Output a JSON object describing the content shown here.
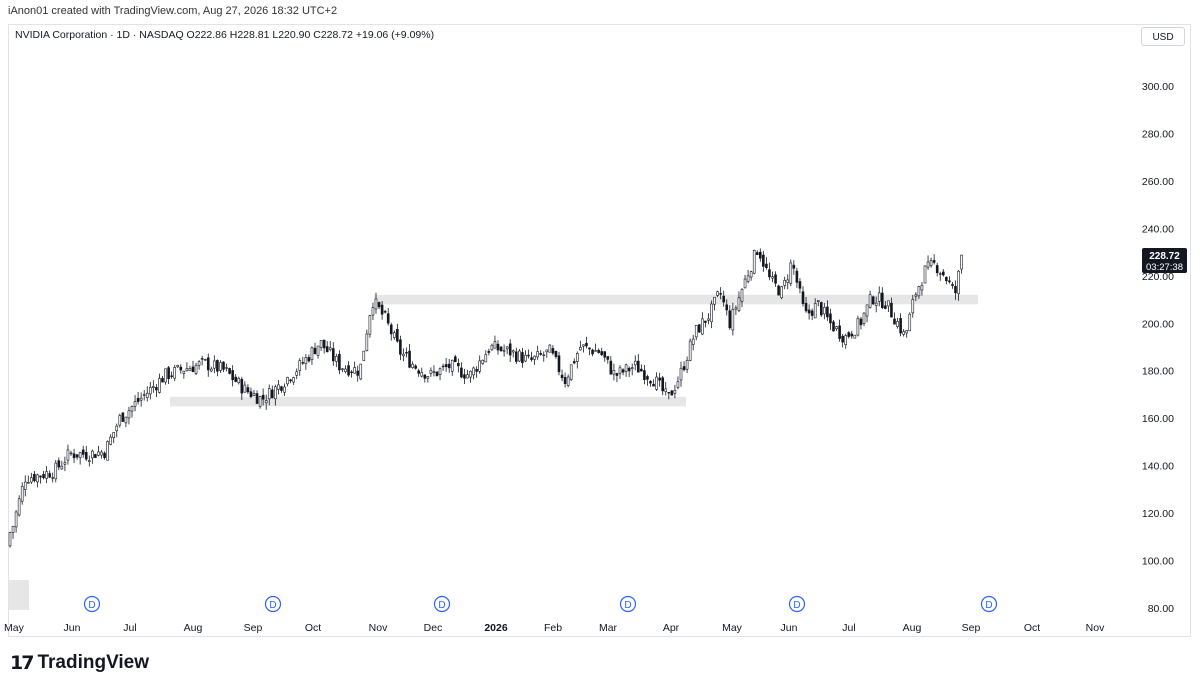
{
  "credit": "iAnon01 created with TradingView.com, Aug 27, 2026 18:32 UTC+2",
  "legend": "NVIDIA Corporation · 1D · NASDAQ  O222.86  H228.81  L220.90  C228.72  +19.06 (+9.09%)",
  "currency": "USD",
  "logo_text": "TradingView",
  "logo_icon": "tradingview-logo-icon",
  "chart_data": {
    "type": "candlestick",
    "symbol": "NVIDIA Corporation",
    "interval": "1D",
    "exchange": "NASDAQ",
    "ohlc_last": {
      "open": 222.86,
      "high": 228.81,
      "low": 220.9,
      "close": 228.72,
      "change": 19.06,
      "change_pct": 9.09
    },
    "y_ticks": [
      "300.00",
      "280.00",
      "260.00",
      "240.00",
      "220.00",
      "200.00",
      "180.00",
      "160.00",
      "140.00",
      "120.00",
      "100.00",
      "80.00"
    ],
    "y_tick_values": [
      300,
      280,
      260,
      240,
      220,
      200,
      180,
      160,
      140,
      120,
      100,
      80
    ],
    "ylim": [
      77,
      318
    ],
    "x_ticks": [
      "May",
      "Jun",
      "Jul",
      "Aug",
      "Sep",
      "Oct",
      "Nov",
      "Dec",
      "2026",
      "Feb",
      "Mar",
      "Apr",
      "May",
      "Jun",
      "Jul",
      "Aug",
      "Sep",
      "Oct",
      "Nov"
    ],
    "last_price_label": "228.72",
    "countdown_label": "03:27:38",
    "dividend_marker_label": "D",
    "dividend_markers": [
      "Jun",
      "Sep",
      "Dec",
      "Mar",
      "Jun",
      "Sep"
    ],
    "support_zones": [
      {
        "low": 165,
        "high": 169,
        "start": "Aug",
        "end": "Apr"
      },
      {
        "low": 208,
        "high": 212,
        "start": "Nov",
        "end": "Sep"
      }
    ],
    "price_path": [
      [
        0,
        106
      ],
      [
        12,
        113
      ],
      [
        25,
        135
      ],
      [
        40,
        136
      ],
      [
        55,
        138
      ],
      [
        70,
        145
      ],
      [
        90,
        145
      ],
      [
        105,
        146
      ],
      [
        120,
        160
      ],
      [
        140,
        168
      ],
      [
        165,
        178
      ],
      [
        185,
        181
      ],
      [
        205,
        183
      ],
      [
        225,
        180
      ],
      [
        245,
        172
      ],
      [
        262,
        168
      ],
      [
        280,
        174
      ],
      [
        300,
        182
      ],
      [
        320,
        192
      ],
      [
        340,
        182
      ],
      [
        360,
        180
      ],
      [
        372,
        210
      ],
      [
        385,
        202
      ],
      [
        400,
        188
      ],
      [
        415,
        182
      ],
      [
        430,
        178
      ],
      [
        450,
        182
      ],
      [
        470,
        178
      ],
      [
        490,
        190
      ],
      [
        510,
        188
      ],
      [
        530,
        184
      ],
      [
        550,
        188
      ],
      [
        565,
        176
      ],
      [
        580,
        190
      ],
      [
        600,
        188
      ],
      [
        615,
        178
      ],
      [
        635,
        182
      ],
      [
        655,
        176
      ],
      [
        668,
        168
      ],
      [
        680,
        178
      ],
      [
        695,
        196
      ],
      [
        710,
        204
      ],
      [
        720,
        213
      ],
      [
        730,
        200
      ],
      [
        745,
        218
      ],
      [
        758,
        232
      ],
      [
        770,
        218
      ],
      [
        782,
        213
      ],
      [
        792,
        226
      ],
      [
        805,
        203
      ],
      [
        818,
        208
      ],
      [
        830,
        200
      ],
      [
        845,
        194
      ],
      [
        860,
        200
      ],
      [
        872,
        211
      ],
      [
        885,
        209
      ],
      [
        898,
        200
      ],
      [
        905,
        194
      ],
      [
        915,
        212
      ],
      [
        925,
        222
      ],
      [
        935,
        225
      ],
      [
        945,
        220
      ],
      [
        955,
        212
      ],
      [
        962,
        228
      ]
    ]
  }
}
